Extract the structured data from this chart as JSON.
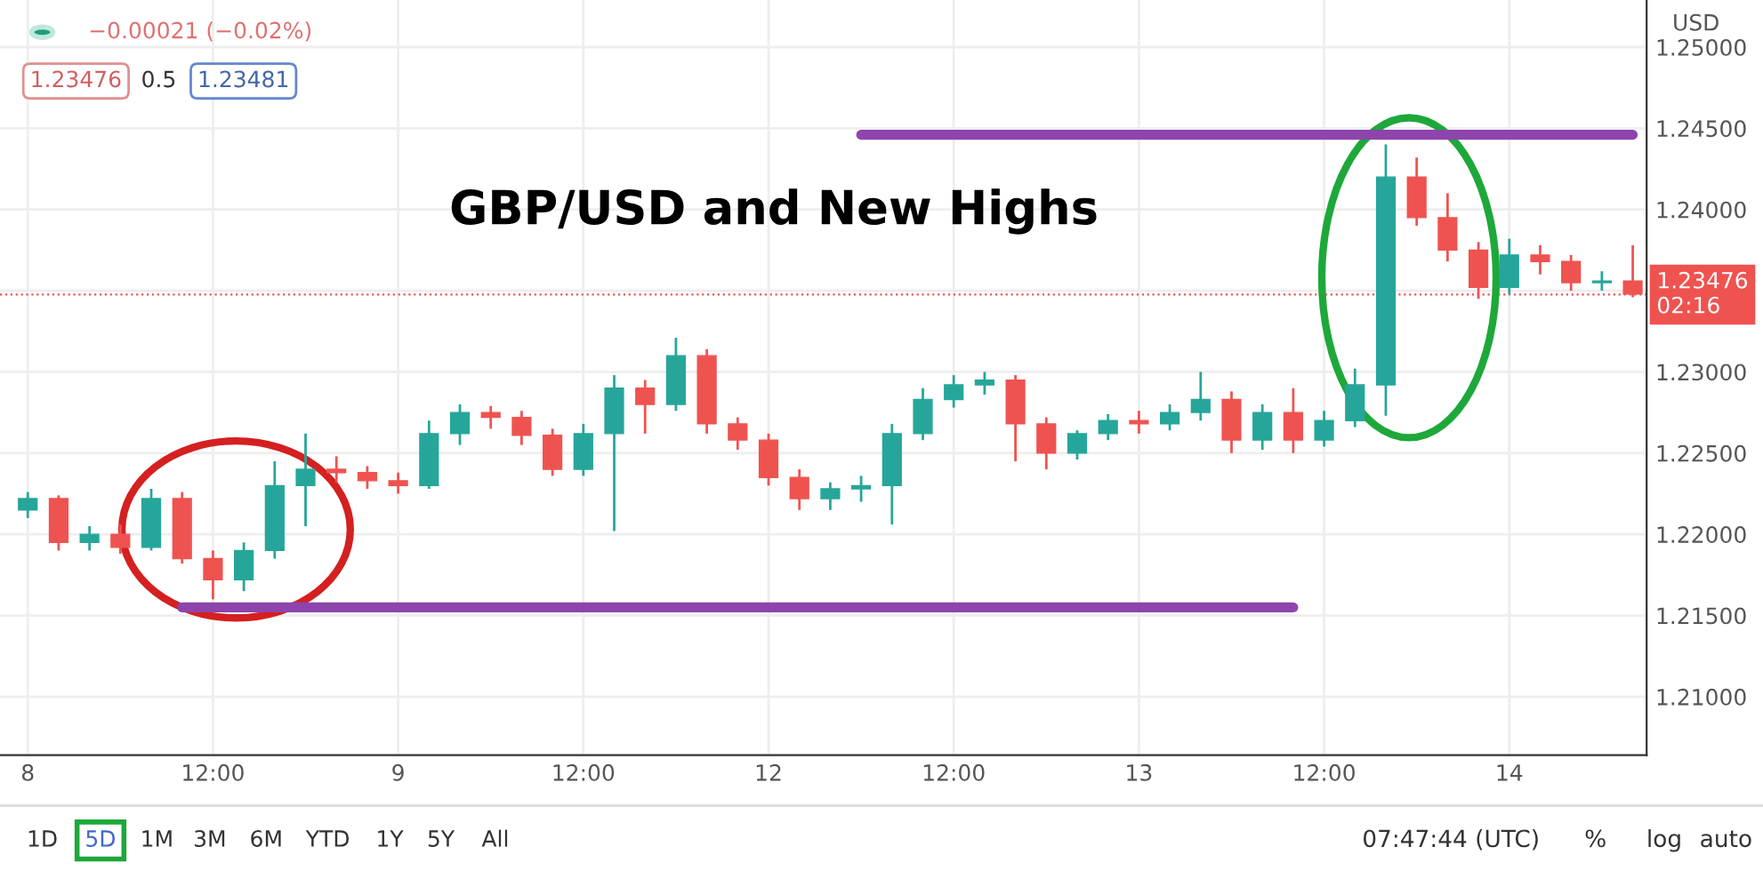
{
  "chart_data": {
    "type": "candlestick",
    "categories": [
      "8",
      null,
      null,
      null,
      null,
      null,
      "12:00",
      null,
      null,
      null,
      null,
      null,
      "9",
      null,
      null,
      null,
      null,
      null,
      "12:00",
      null,
      null,
      null,
      null,
      null,
      "12",
      null,
      null,
      null,
      null,
      null,
      "12:00",
      null,
      null,
      null,
      null,
      null,
      "13",
      null,
      null,
      null,
      null,
      null,
      "12:00",
      null,
      null,
      null,
      null,
      null,
      "14",
      null,
      null,
      null,
      null
    ],
    "ohlc": [
      [
        1.2215,
        1.2226,
        1.221,
        1.2222
      ],
      [
        1.2222,
        1.2224,
        1.219,
        1.2195
      ],
      [
        1.2195,
        1.2205,
        1.219,
        1.22
      ],
      [
        1.22,
        1.2206,
        1.2188,
        1.2192
      ],
      [
        1.2192,
        1.2228,
        1.219,
        1.2222
      ],
      [
        1.2222,
        1.2226,
        1.2182,
        1.2185
      ],
      [
        1.2185,
        1.219,
        1.216,
        1.2172
      ],
      [
        1.2172,
        1.2195,
        1.2165,
        1.219
      ],
      [
        1.219,
        1.2245,
        1.2185,
        1.223
      ],
      [
        1.223,
        1.2262,
        1.2205,
        1.224
      ],
      [
        1.224,
        1.2248,
        1.2232,
        1.2238
      ],
      [
        1.2238,
        1.2242,
        1.2228,
        1.2233
      ],
      [
        1.2233,
        1.2238,
        1.2225,
        1.223
      ],
      [
        1.223,
        1.227,
        1.2228,
        1.2262
      ],
      [
        1.2262,
        1.228,
        1.2255,
        1.2275
      ],
      [
        1.2275,
        1.2279,
        1.2265,
        1.2272
      ],
      [
        1.2272,
        1.2276,
        1.2255,
        1.2261
      ],
      [
        1.2261,
        1.2265,
        1.2236,
        1.224
      ],
      [
        1.224,
        1.2268,
        1.2236,
        1.2262
      ],
      [
        1.2262,
        1.2298,
        1.2202,
        1.229
      ],
      [
        1.229,
        1.2295,
        1.2262,
        1.228
      ],
      [
        1.228,
        1.2321,
        1.2276,
        1.231
      ],
      [
        1.231,
        1.2314,
        1.2262,
        1.2268
      ],
      [
        1.2268,
        1.2272,
        1.2252,
        1.2258
      ],
      [
        1.2258,
        1.2262,
        1.223,
        1.2235
      ],
      [
        1.2235,
        1.224,
        1.2215,
        1.2222
      ],
      [
        1.2222,
        1.2232,
        1.2215,
        1.2228
      ],
      [
        1.2228,
        1.2236,
        1.222,
        1.223
      ],
      [
        1.223,
        1.2268,
        1.2206,
        1.2262
      ],
      [
        1.2262,
        1.229,
        1.2258,
        1.2283
      ],
      [
        1.2283,
        1.2298,
        1.2278,
        1.2292
      ],
      [
        1.2292,
        1.23,
        1.2286,
        1.2295
      ],
      [
        1.2295,
        1.2298,
        1.2245,
        1.2268
      ],
      [
        1.2268,
        1.2272,
        1.224,
        1.225
      ],
      [
        1.225,
        1.2264,
        1.2246,
        1.2262
      ],
      [
        1.2262,
        1.2274,
        1.2258,
        1.227
      ],
      [
        1.227,
        1.2276,
        1.2262,
        1.2268
      ],
      [
        1.2268,
        1.228,
        1.2264,
        1.2275
      ],
      [
        1.2275,
        1.23,
        1.227,
        1.2283
      ],
      [
        1.2283,
        1.2288,
        1.225,
        1.2258
      ],
      [
        1.2258,
        1.228,
        1.2252,
        1.2275
      ],
      [
        1.2275,
        1.229,
        1.225,
        1.2258
      ],
      [
        1.2258,
        1.2276,
        1.2254,
        1.227
      ],
      [
        1.227,
        1.2302,
        1.2266,
        1.2292
      ],
      [
        1.2292,
        1.244,
        1.2273,
        1.242
      ],
      [
        1.242,
        1.2432,
        1.239,
        1.2395
      ],
      [
        1.2395,
        1.241,
        1.2368,
        1.2375
      ],
      [
        1.2375,
        1.238,
        1.2345,
        1.2352
      ],
      [
        1.2352,
        1.2382,
        1.2348,
        1.2372
      ],
      [
        1.2372,
        1.2378,
        1.236,
        1.2368
      ],
      [
        1.2368,
        1.2372,
        1.235,
        1.2355
      ],
      [
        1.2355,
        1.2362,
        1.235,
        1.2356
      ],
      [
        1.2356,
        1.2378,
        1.2346,
        1.2348
      ]
    ],
    "series": [
      {
        "type": "line",
        "color": "#8e44ad",
        "values": [
          null,
          null,
          null,
          null,
          null,
          null,
          null,
          null,
          null,
          null,
          null,
          null,
          null,
          null,
          null,
          null,
          null,
          null,
          null,
          null,
          null,
          null,
          null,
          null,
          null,
          null,
          null,
          1.2446,
          1.2446,
          1.2446,
          1.2446,
          1.2446,
          1.2446,
          1.2446,
          1.2446,
          1.2446,
          1.2446,
          1.2446,
          1.2446,
          1.2446,
          1.2446,
          1.2446,
          1.2446,
          1.2446,
          1.2446,
          1.2446,
          1.2446,
          1.2446,
          1.2446,
          1.2446,
          1.2446,
          1.2446,
          1.2446
        ]
      },
      {
        "type": "line",
        "color": "#8e44ad",
        "values": [
          null,
          null,
          null,
          null,
          null,
          1.2155,
          1.2155,
          1.2155,
          1.2155,
          1.2155,
          1.2155,
          1.2155,
          1.2155,
          1.2155,
          1.2155,
          1.2155,
          1.2155,
          1.2155,
          1.2155,
          1.2155,
          1.2155,
          1.2155,
          1.2155,
          1.2155,
          1.2155,
          1.2155,
          1.2155,
          1.2155,
          1.2155,
          1.2155,
          1.2155,
          1.2155,
          1.2155,
          1.2155,
          1.2155,
          1.2155,
          1.2155,
          1.2155,
          1.2155,
          1.2155,
          1.2155,
          1.2155,
          null,
          null,
          null,
          null,
          null,
          null,
          null,
          null,
          null,
          null,
          null
        ]
      }
    ],
    "title": "GBP/USD and New Highs",
    "ylabel": "USD",
    "ylim": [
      1.2064,
      1.2529
    ],
    "yticks": [
      {
        "value": 1.21,
        "label": "1.21000"
      },
      {
        "value": 1.215,
        "label": "1.21500"
      },
      {
        "value": 1.22,
        "label": "1.22000"
      },
      {
        "value": 1.225,
        "label": "1.22500"
      },
      {
        "value": 1.23,
        "label": "1.23000"
      },
      {
        "value": 1.235,
        "label": null
      },
      {
        "value": 1.24,
        "label": "1.24000"
      },
      {
        "value": 1.245,
        "label": "1.24500"
      },
      {
        "value": 1.25,
        "label": "1.25000"
      }
    ],
    "ref_lines": [
      {
        "axis": "y",
        "value": 1.23476,
        "label": "1.23476\n02:16",
        "color": "#ef5350",
        "line_style": "dotted"
      }
    ],
    "grid": true,
    "annotations": [
      "−0.00021 (−0.02%)",
      "1.23476",
      "0.5",
      "1.23481",
      "1D",
      "5D",
      "1M",
      "3M",
      "6M",
      "YTD",
      "1Y",
      "5Y",
      "All",
      "07:47:44 (UTC)",
      "%",
      "log",
      "auto"
    ]
  }
}
